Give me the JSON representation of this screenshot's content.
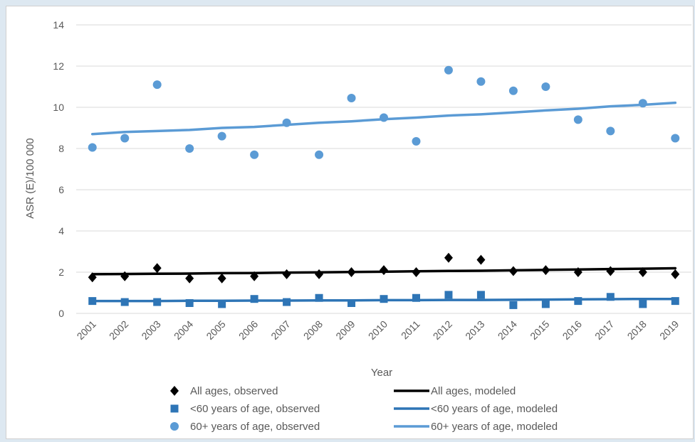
{
  "chart_data": {
    "type": "scatter",
    "title": "",
    "xlabel": "Year",
    "ylabel": "ASR (E)/100 000",
    "ylim": [
      0,
      14
    ],
    "yticks": [
      0,
      2,
      4,
      6,
      8,
      10,
      12,
      14
    ],
    "categories": [
      "2001",
      "2002",
      "2003",
      "2004",
      "2005",
      "2006",
      "2007",
      "2008",
      "2009",
      "2010",
      "2011",
      "2012",
      "2013",
      "2014",
      "2015",
      "2016",
      "2017",
      "2018",
      "2019"
    ],
    "grid": "horizontal",
    "legend_position": "bottom",
    "series": [
      {
        "name": "All ages, observed",
        "kind": "markers",
        "marker": "diamond",
        "color": "#000000",
        "values": [
          1.75,
          1.8,
          2.2,
          1.7,
          1.7,
          1.8,
          1.9,
          1.9,
          2.0,
          2.1,
          2.0,
          2.7,
          2.6,
          2.05,
          2.1,
          2.0,
          2.05,
          2.0,
          1.9
        ]
      },
      {
        "name": "All ages, modeled",
        "kind": "line",
        "color": "#000000",
        "values": [
          1.9,
          1.91,
          1.92,
          1.93,
          1.95,
          1.96,
          1.98,
          1.99,
          2.01,
          2.02,
          2.04,
          2.06,
          2.07,
          2.09,
          2.11,
          2.13,
          2.15,
          2.17,
          2.19
        ]
      },
      {
        "name": "<60 years of age, observed",
        "kind": "markers",
        "marker": "square",
        "color": "#2e75b6",
        "values": [
          0.6,
          0.55,
          0.55,
          0.5,
          0.45,
          0.7,
          0.55,
          0.75,
          0.5,
          0.7,
          0.75,
          0.9,
          0.9,
          0.4,
          0.45,
          0.6,
          0.8,
          0.45,
          0.6
        ]
      },
      {
        "name": "<60 years of age, modeled",
        "kind": "line",
        "color": "#2e75b6",
        "values": [
          0.6,
          0.6,
          0.6,
          0.61,
          0.61,
          0.62,
          0.62,
          0.63,
          0.63,
          0.64,
          0.64,
          0.65,
          0.65,
          0.66,
          0.67,
          0.68,
          0.69,
          0.7,
          0.7
        ]
      },
      {
        "name": "60+ years of age, observed",
        "kind": "markers",
        "marker": "circle",
        "color": "#5b9bd5",
        "values": [
          8.05,
          8.5,
          11.1,
          8.0,
          8.6,
          7.7,
          9.25,
          7.7,
          10.45,
          9.5,
          8.35,
          11.8,
          11.25,
          10.8,
          11.0,
          9.4,
          8.85,
          10.2,
          8.5
        ]
      },
      {
        "name": "60+ years of age, modeled",
        "kind": "line",
        "color": "#5b9bd5",
        "values": [
          8.7,
          8.8,
          8.85,
          8.9,
          9.0,
          9.05,
          9.15,
          9.25,
          9.32,
          9.42,
          9.5,
          9.6,
          9.66,
          9.75,
          9.85,
          9.93,
          10.05,
          10.12,
          10.22
        ]
      }
    ],
    "legend": {
      "left": [
        "All ages, observed",
        "<60 years of age, observed",
        "60+ years of age, observed"
      ],
      "right": [
        "All ages, modeled",
        "<60 years of age, modeled",
        "60+ years of age, modeled"
      ]
    }
  }
}
